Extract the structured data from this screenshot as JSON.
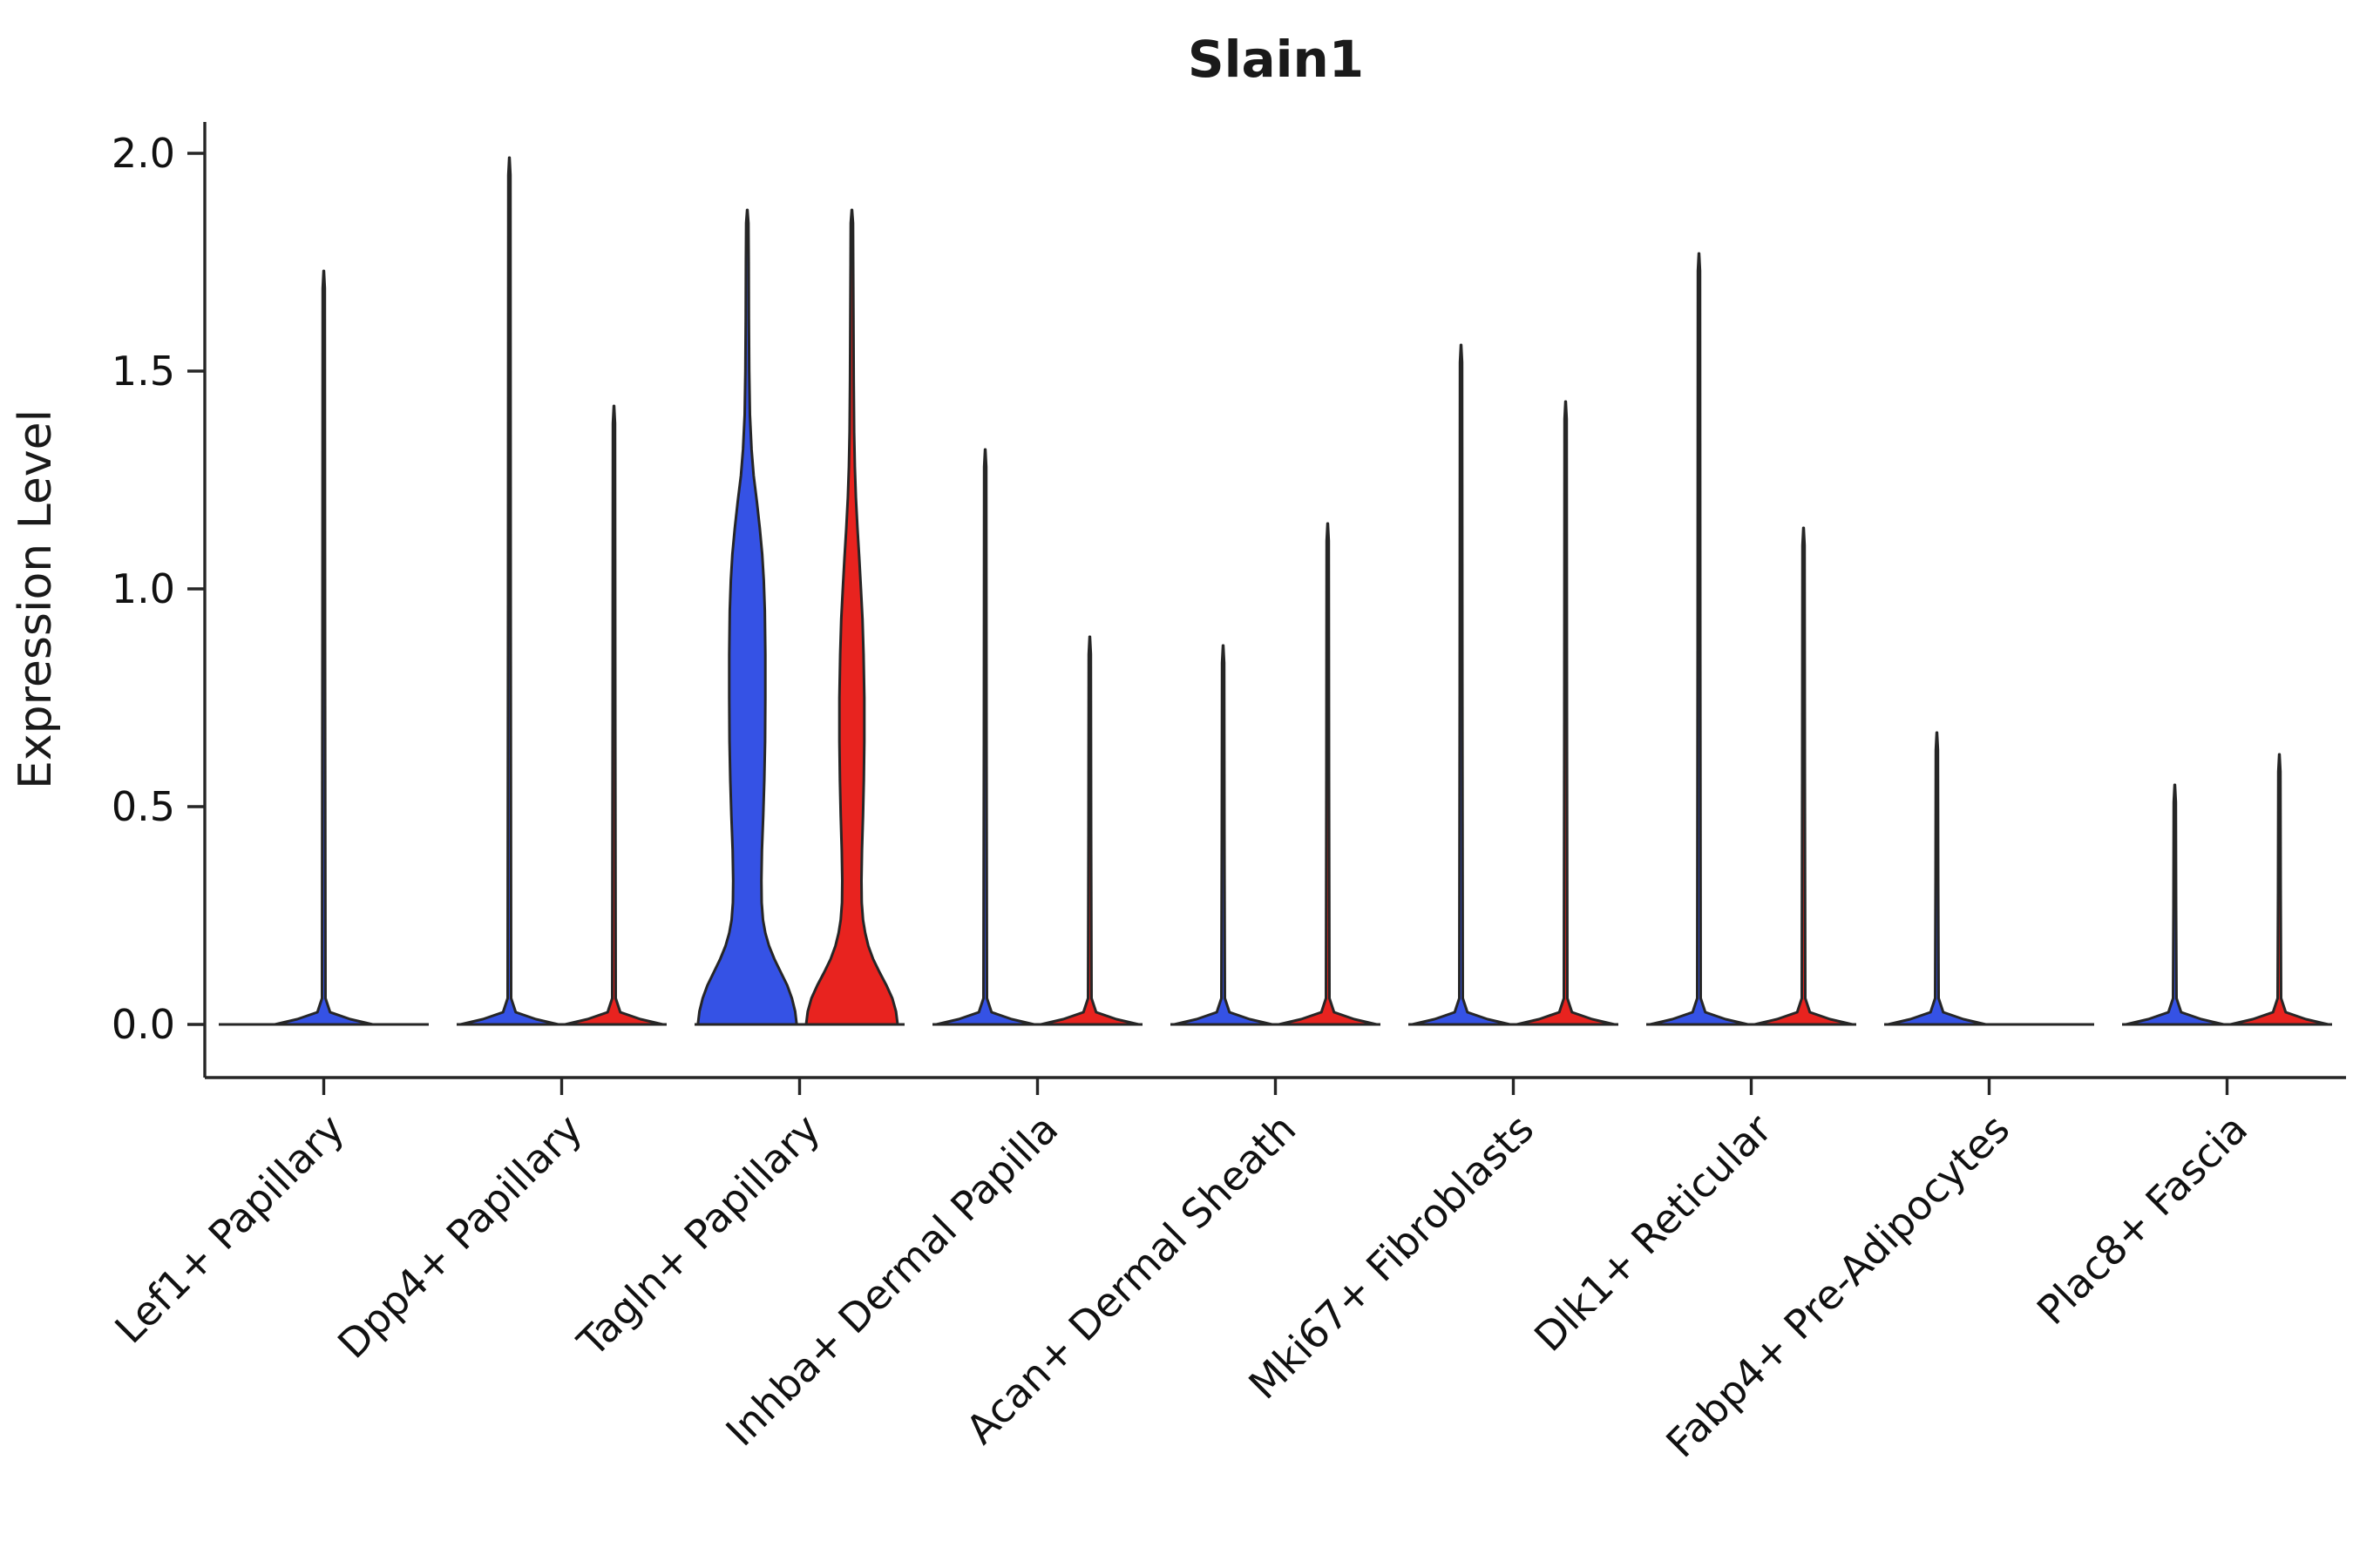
{
  "title": "Slain1",
  "chart_data": {
    "type": "violin",
    "title": "Slain1",
    "xlabel": "",
    "ylabel": "Expression Level",
    "ylim": [
      0,
      2.05
    ],
    "yticks": [
      0.0,
      0.5,
      1.0,
      1.5,
      2.0
    ],
    "ytick_labels": [
      "0.0",
      "0.5",
      "1.0",
      "1.5",
      "2.0"
    ],
    "grid": false,
    "legend_position": "none",
    "edge_color": "#262626",
    "categories": [
      "Lef1+ Papillary",
      "Dpp4+ Papillary",
      "Tagln+ Papillary",
      "Inhba+ Dermal Papilla",
      "Acan+ Dermal Sheath",
      "Mki67+ Fibroblasts",
      "Dlk1+ Reticular",
      "Fabp4+ Pre-Adipocytes",
      "Plac8+ Fascia"
    ],
    "series": [
      {
        "name": "blue-split",
        "color": "#3552E5",
        "max_expression": [
          1.73,
          1.99,
          1.87,
          1.32,
          0.87,
          1.56,
          1.77,
          0.67,
          0.55
        ],
        "wide_body": [
          false,
          false,
          true,
          false,
          false,
          false,
          false,
          false,
          false
        ],
        "centered": [
          true,
          false,
          false,
          false,
          false,
          false,
          false,
          false,
          false
        ]
      },
      {
        "name": "red-split",
        "color": "#E8231F",
        "max_expression": [
          null,
          1.42,
          1.87,
          0.89,
          1.15,
          1.43,
          1.14,
          0,
          0.62
        ],
        "wide_body": [
          false,
          false,
          true,
          false,
          false,
          false,
          false,
          false,
          false
        ],
        "centered": [
          false,
          false,
          false,
          false,
          false,
          false,
          false,
          false,
          false
        ]
      }
    ],
    "violin_profiles": {
      "blue_tagln": [
        [
          0,
          0.93
        ],
        [
          0.03,
          0.9
        ],
        [
          0.06,
          0.84
        ],
        [
          0.09,
          0.75
        ],
        [
          0.12,
          0.63
        ],
        [
          0.15,
          0.51
        ],
        [
          0.18,
          0.41
        ],
        [
          0.21,
          0.34
        ],
        [
          0.24,
          0.295
        ],
        [
          0.28,
          0.27
        ],
        [
          0.33,
          0.265
        ],
        [
          0.4,
          0.275
        ],
        [
          0.48,
          0.3
        ],
        [
          0.56,
          0.32
        ],
        [
          0.65,
          0.335
        ],
        [
          0.75,
          0.34
        ],
        [
          0.85,
          0.34
        ],
        [
          0.95,
          0.33
        ],
        [
          1.02,
          0.31
        ],
        [
          1.08,
          0.28
        ],
        [
          1.14,
          0.235
        ],
        [
          1.2,
          0.18
        ],
        [
          1.26,
          0.12
        ],
        [
          1.32,
          0.08
        ],
        [
          1.4,
          0.05
        ],
        [
          1.5,
          0.036
        ],
        [
          1.62,
          0.03
        ],
        [
          1.75,
          0.026
        ],
        [
          1.84,
          0.022
        ],
        [
          1.87,
          0.004
        ]
      ],
      "red_tagln": [
        [
          0,
          0.86
        ],
        [
          0.03,
          0.83
        ],
        [
          0.06,
          0.76
        ],
        [
          0.09,
          0.65
        ],
        [
          0.12,
          0.52
        ],
        [
          0.15,
          0.4
        ],
        [
          0.18,
          0.31
        ],
        [
          0.21,
          0.25
        ],
        [
          0.24,
          0.21
        ],
        [
          0.28,
          0.185
        ],
        [
          0.33,
          0.18
        ],
        [
          0.4,
          0.19
        ],
        [
          0.48,
          0.21
        ],
        [
          0.56,
          0.225
        ],
        [
          0.65,
          0.235
        ],
        [
          0.75,
          0.235
        ],
        [
          0.85,
          0.22
        ],
        [
          0.93,
          0.2
        ],
        [
          1.0,
          0.17
        ],
        [
          1.07,
          0.14
        ],
        [
          1.14,
          0.105
        ],
        [
          1.21,
          0.075
        ],
        [
          1.28,
          0.055
        ],
        [
          1.36,
          0.042
        ],
        [
          1.48,
          0.034
        ],
        [
          1.62,
          0.029
        ],
        [
          1.75,
          0.025
        ],
        [
          1.84,
          0.022
        ],
        [
          1.87,
          0.004
        ]
      ]
    }
  }
}
